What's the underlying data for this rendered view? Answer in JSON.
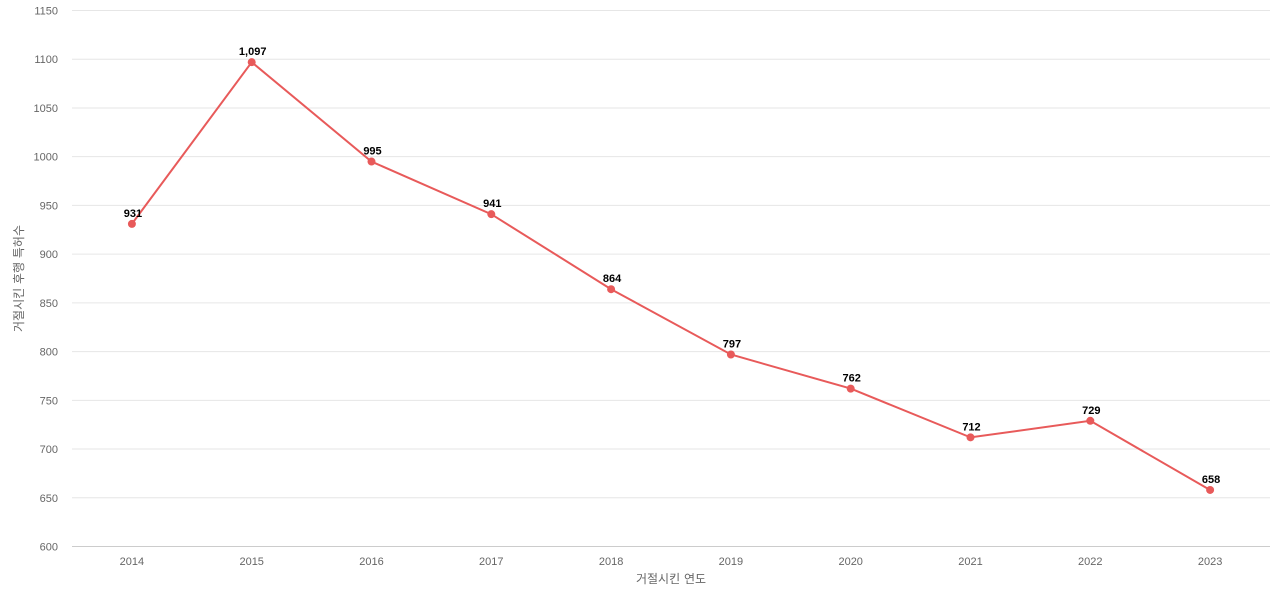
{
  "chart_data": {
    "type": "line",
    "title": "",
    "xlabel": "거절시킨 연도",
    "ylabel": "거절시킨 후행 특허수",
    "categories": [
      "2014",
      "2015",
      "2016",
      "2017",
      "2018",
      "2019",
      "2020",
      "2021",
      "2022",
      "2023"
    ],
    "series": [
      {
        "values": [
          931,
          1097,
          995,
          941,
          864,
          797,
          762,
          712,
          729,
          658
        ],
        "value_labels": [
          "931",
          "1,097",
          "995",
          "941",
          "864",
          "797",
          "762",
          "712",
          "729",
          "658"
        ]
      }
    ],
    "ylim": [
      600,
      1150
    ],
    "yticks": [
      "600",
      "650",
      "700",
      "750",
      "800",
      "850",
      "900",
      "950",
      "1000",
      "1050",
      "1100",
      "1150"
    ],
    "grid": true,
    "legend": "none",
    "colors": {
      "line": "#e85a5a",
      "point": "#e85a5a",
      "grid": "#e6e6e6"
    }
  }
}
